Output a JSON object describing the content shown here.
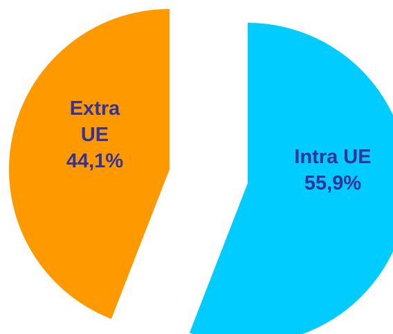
{
  "chart_data": {
    "type": "pie",
    "title": "",
    "legend": "none",
    "slices": [
      {
        "name": "Intra UE",
        "value": 55.9,
        "label_lines": [
          "Intra UE",
          "55,9%"
        ],
        "color": "#00CCFF"
      },
      {
        "name": "Extra UE",
        "value": 44.1,
        "label_lines": [
          "Extra",
          "UE",
          "44,1%"
        ],
        "color": "#FF9900"
      }
    ],
    "label_color": "#333399",
    "exploded": true
  }
}
